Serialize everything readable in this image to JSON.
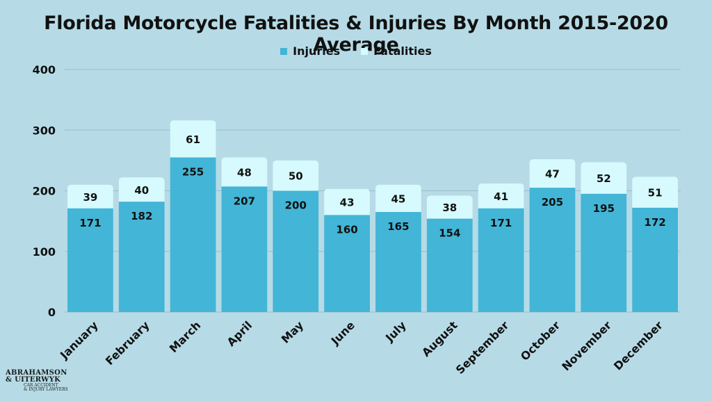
{
  "chart_data": {
    "type": "bar",
    "stacked": true,
    "title": "Florida Motorcycle Fatalities & Injuries By Month 2015-2020 Average",
    "categories": [
      "January",
      "February",
      "March",
      "April",
      "May",
      "June",
      "July",
      "August",
      "September",
      "October",
      "November",
      "December"
    ],
    "series": [
      {
        "name": "Injuries",
        "color": "#43b5d6",
        "values": [
          171,
          182,
          255,
          207,
          200,
          160,
          165,
          154,
          171,
          205,
          195,
          172
        ]
      },
      {
        "name": "Fatalities",
        "color": "#d6fafd",
        "values": [
          39,
          40,
          61,
          48,
          50,
          43,
          45,
          38,
          41,
          47,
          52,
          51
        ]
      }
    ],
    "ylim": [
      0,
      400
    ],
    "yticks": [
      0,
      100,
      200,
      300,
      400
    ],
    "legend": "top-center",
    "grid": true
  },
  "logo": {
    "line1": "ABRAHAMSON",
    "line2": "& UITERWYK",
    "line3": "CAR ACCIDENT",
    "line4": "& INJURY LAWYERS"
  }
}
